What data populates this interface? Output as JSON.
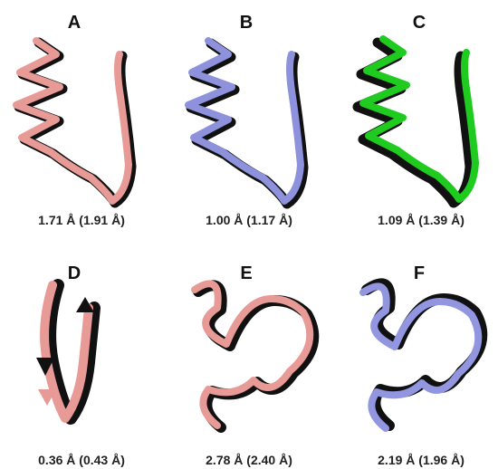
{
  "panels": [
    {
      "label": "A",
      "rmsd": "1.71 Å (1.91 Å)"
    },
    {
      "label": "B",
      "rmsd": "1.00 Å (1.17 Å)"
    },
    {
      "label": "C",
      "rmsd": "1.09 Å (1.39 Å)"
    },
    {
      "label": "D",
      "rmsd": "0.36 Å (0.43 Å)"
    },
    {
      "label": "E",
      "rmsd": "2.78 Å (2.40 Å)"
    },
    {
      "label": "F",
      "rmsd": "2.19 Å (1.96 Å)"
    }
  ]
}
